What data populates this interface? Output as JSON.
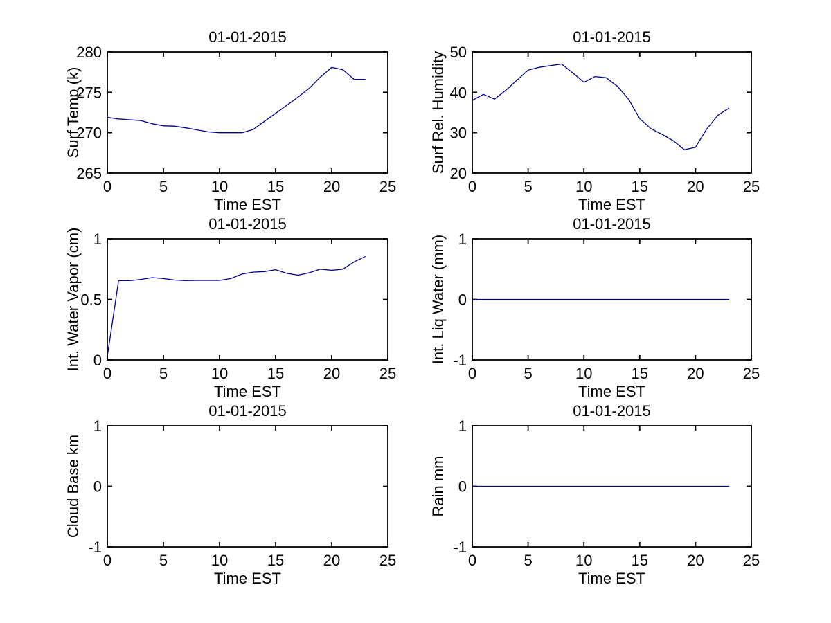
{
  "figure": {
    "background_color": "#ffffff",
    "axis_color": "#000000",
    "text_color": "#000000",
    "line_color": "#00008B"
  },
  "chart_data": [
    {
      "name": "surf-temp",
      "type": "line",
      "title": "01-01-2015",
      "xlabel": "Time EST",
      "ylabel": "Surf Temp (k)",
      "xlim": [
        0,
        25
      ],
      "ylim": [
        265,
        280
      ],
      "xticks": [
        0,
        5,
        10,
        15,
        20,
        25
      ],
      "yticks": [
        265,
        270,
        275,
        280
      ],
      "grid": false,
      "legend": null,
      "x": [
        0,
        1,
        2,
        3,
        4,
        5,
        6,
        7,
        8,
        9,
        10,
        11,
        12,
        13,
        14,
        15,
        16,
        17,
        18,
        19,
        20,
        21,
        22,
        23
      ],
      "y": [
        271.9,
        271.7,
        271.6,
        271.5,
        271.1,
        270.85,
        270.8,
        270.6,
        270.35,
        270.1,
        270.0,
        270.0,
        270.0,
        270.4,
        271.4,
        272.4,
        273.4,
        274.4,
        275.5,
        276.9,
        278.1,
        277.8,
        276.6,
        276.6
      ]
    },
    {
      "name": "surf-rel-humidity",
      "type": "line",
      "title": "01-01-2015",
      "xlabel": "Time EST",
      "ylabel": "Surf Rel. Humidity",
      "xlim": [
        0,
        25
      ],
      "ylim": [
        20,
        50
      ],
      "xticks": [
        0,
        5,
        10,
        15,
        20,
        25
      ],
      "yticks": [
        20,
        30,
        40,
        50
      ],
      "grid": false,
      "legend": null,
      "x": [
        0,
        1,
        2,
        3,
        4,
        5,
        6,
        7,
        8,
        9,
        10,
        11,
        12,
        13,
        14,
        15,
        16,
        17,
        18,
        19,
        20,
        21,
        22,
        23
      ],
      "y": [
        38,
        39.5,
        38.3,
        40.5,
        43,
        45.5,
        46.2,
        46.6,
        47,
        44.8,
        42.5,
        43.9,
        43.6,
        41.5,
        38.3,
        33.5,
        31,
        29.6,
        28,
        25.8,
        26.4,
        30.9,
        34.3,
        36.1
      ]
    },
    {
      "name": "int-water-vapor",
      "type": "line",
      "title": "01-01-2015",
      "xlabel": "Time EST",
      "ylabel": "Int. Water Vapor (cm)",
      "xlim": [
        0,
        25
      ],
      "ylim": [
        0,
        1
      ],
      "xticks": [
        0,
        5,
        10,
        15,
        20,
        25
      ],
      "yticks": [
        0,
        0.5,
        1
      ],
      "grid": false,
      "legend": null,
      "x": [
        0,
        1,
        2,
        3,
        4,
        5,
        6,
        7,
        8,
        9,
        10,
        11,
        12,
        13,
        14,
        15,
        16,
        17,
        18,
        19,
        20,
        21,
        22,
        23
      ],
      "y": [
        0.03,
        0.655,
        0.655,
        0.665,
        0.68,
        0.672,
        0.66,
        0.655,
        0.657,
        0.657,
        0.657,
        0.672,
        0.71,
        0.725,
        0.73,
        0.745,
        0.715,
        0.7,
        0.72,
        0.75,
        0.74,
        0.75,
        0.81,
        0.855
      ]
    },
    {
      "name": "int-liq-water",
      "type": "line",
      "title": "01-01-2015",
      "xlabel": "Time EST",
      "ylabel": "Int. Liq Water (mm)",
      "xlim": [
        0,
        25
      ],
      "ylim": [
        -1,
        1
      ],
      "xticks": [
        0,
        5,
        10,
        15,
        20,
        25
      ],
      "yticks": [
        -1,
        0,
        1
      ],
      "grid": false,
      "legend": null,
      "x": [
        0,
        1,
        2,
        3,
        4,
        5,
        6,
        7,
        8,
        9,
        10,
        11,
        12,
        13,
        14,
        15,
        16,
        17,
        18,
        19,
        20,
        21,
        22,
        23
      ],
      "y": [
        0,
        0,
        0,
        0,
        0,
        0,
        0,
        0,
        0,
        0,
        0,
        0,
        0,
        0,
        0,
        0,
        0,
        0,
        0,
        0,
        0,
        0,
        0,
        0
      ]
    },
    {
      "name": "cloud-base",
      "type": "line",
      "title": "01-01-2015",
      "xlabel": "Time EST",
      "ylabel": "Cloud Base km",
      "xlim": [
        0,
        25
      ],
      "ylim": [
        -1,
        1
      ],
      "xticks": [
        0,
        5,
        10,
        15,
        20,
        25
      ],
      "yticks": [
        -1,
        0,
        1
      ],
      "grid": false,
      "legend": null,
      "x": [],
      "y": []
    },
    {
      "name": "rain",
      "type": "line",
      "title": "01-01-2015",
      "xlabel": "Time EST",
      "ylabel": "Rain mm",
      "xlim": [
        0,
        25
      ],
      "ylim": [
        -1,
        1
      ],
      "xticks": [
        0,
        5,
        10,
        15,
        20,
        25
      ],
      "yticks": [
        -1,
        0,
        1
      ],
      "grid": false,
      "legend": null,
      "x": [
        0,
        1,
        2,
        3,
        4,
        5,
        6,
        7,
        8,
        9,
        10,
        11,
        12,
        13,
        14,
        15,
        16,
        17,
        18,
        19,
        20,
        21,
        22,
        23
      ],
      "y": [
        0,
        0,
        0,
        0,
        0,
        0,
        0,
        0,
        0,
        0,
        0,
        0,
        0,
        0,
        0,
        0,
        0,
        0,
        0,
        0,
        0,
        0,
        0,
        0
      ]
    }
  ]
}
